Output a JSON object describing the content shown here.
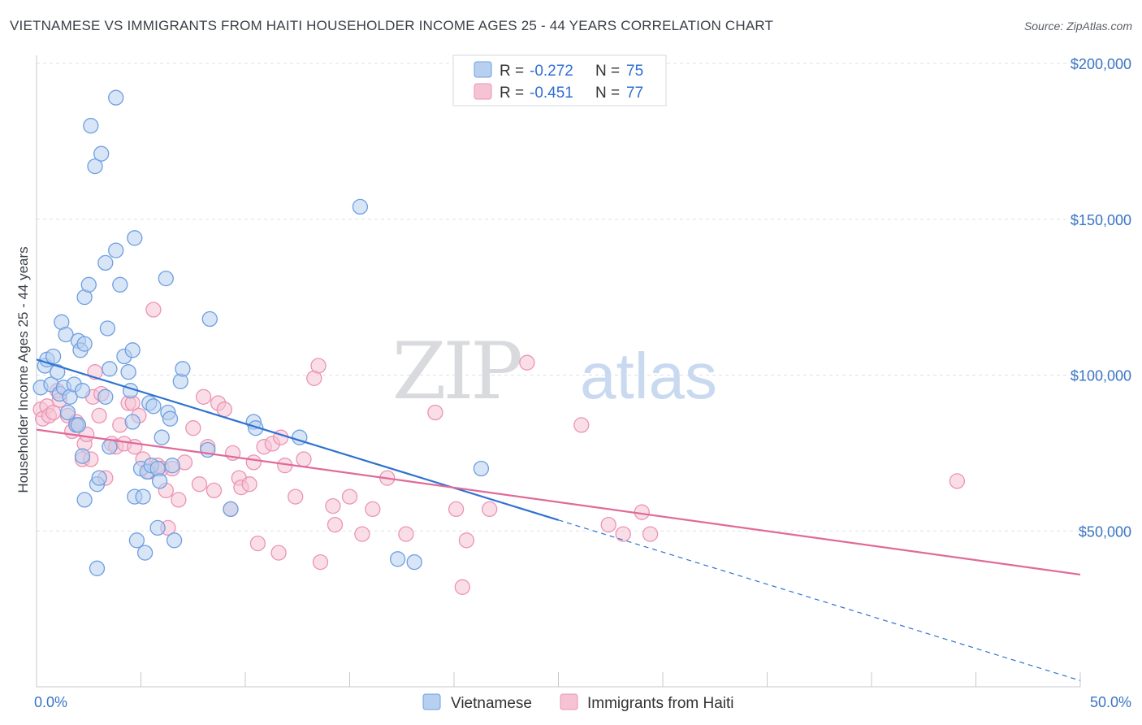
{
  "title": "VIETNAMESE VS IMMIGRANTS FROM HAITI HOUSEHOLDER INCOME AGES 25 - 44 YEARS CORRELATION CHART",
  "source": "Source: ZipAtlas.com",
  "watermark": {
    "zip": "ZIP",
    "atlas": "atlas"
  },
  "colors": {
    "blue": "#2f72d0",
    "blue_fill": "#b7d0f0",
    "blue_stroke": "#6e9fe0",
    "pink": "#e06a98",
    "pink_fill": "#f6c3d4",
    "pink_stroke": "#ec93b4",
    "tick_text": "#3a74c4",
    "grid": "#dde1e6"
  },
  "legend": {
    "rows": [
      {
        "r_label": "R =",
        "r_value": "-0.272",
        "n_label": "N =",
        "n_value": "75"
      },
      {
        "r_label": "R =",
        "r_value": "-0.451",
        "n_label": "N =",
        "n_value": "77"
      }
    ]
  },
  "chart_data": {
    "type": "scatter",
    "xlabel": "",
    "ylabel": "Householder Income Ages 25 - 44 years",
    "x_tick_labels": [
      "0.0%",
      "50.0%"
    ],
    "y_tick_labels": [
      "$50,000",
      "$100,000",
      "$150,000",
      "$200,000"
    ],
    "y_ticks": [
      50000,
      100000,
      150000,
      200000
    ],
    "xlim": [
      0,
      50
    ],
    "ylim": [
      0,
      205000
    ],
    "grid": true,
    "legend_position": "top-center",
    "series": [
      {
        "name": "Vietnamese",
        "r": -0.272,
        "n": 75,
        "trend": {
          "x0": 0,
          "y0": 105000,
          "x1": 25,
          "y1": 53500,
          "dash_to_x": 50,
          "dash_to_y": 2000
        },
        "points": [
          [
            0.2,
            96000
          ],
          [
            0.4,
            103000
          ],
          [
            0.5,
            105000
          ],
          [
            0.7,
            97000
          ],
          [
            0.8,
            106000
          ],
          [
            1.0,
            101000
          ],
          [
            1.1,
            94000
          ],
          [
            1.2,
            117000
          ],
          [
            1.3,
            96000
          ],
          [
            1.4,
            113000
          ],
          [
            1.5,
            88000
          ],
          [
            1.6,
            93000
          ],
          [
            1.8,
            97000
          ],
          [
            1.9,
            84000
          ],
          [
            2.0,
            111000
          ],
          [
            2.1,
            108000
          ],
          [
            2.2,
            95000
          ],
          [
            2.3,
            110000
          ],
          [
            2.0,
            84000
          ],
          [
            2.2,
            74000
          ],
          [
            2.3,
            60000
          ],
          [
            2.3,
            125000
          ],
          [
            2.5,
            129000
          ],
          [
            2.6,
            180000
          ],
          [
            2.8,
            167000
          ],
          [
            2.9,
            65000
          ],
          [
            3.0,
            67000
          ],
          [
            2.9,
            38000
          ],
          [
            3.1,
            171000
          ],
          [
            3.3,
            136000
          ],
          [
            3.3,
            93000
          ],
          [
            3.4,
            115000
          ],
          [
            3.5,
            102000
          ],
          [
            3.5,
            77000
          ],
          [
            3.8,
            140000
          ],
          [
            3.8,
            189000
          ],
          [
            4.0,
            129000
          ],
          [
            4.2,
            106000
          ],
          [
            4.4,
            101000
          ],
          [
            4.5,
            95000
          ],
          [
            4.6,
            85000
          ],
          [
            4.6,
            108000
          ],
          [
            4.7,
            144000
          ],
          [
            4.7,
            61000
          ],
          [
            4.8,
            47000
          ],
          [
            5.0,
            70000
          ],
          [
            5.1,
            61000
          ],
          [
            5.2,
            43000
          ],
          [
            5.3,
            69000
          ],
          [
            5.4,
            91000
          ],
          [
            5.5,
            71000
          ],
          [
            5.6,
            90000
          ],
          [
            5.8,
            70000
          ],
          [
            5.8,
            51000
          ],
          [
            5.9,
            66000
          ],
          [
            6.0,
            80000
          ],
          [
            6.2,
            131000
          ],
          [
            6.3,
            88000
          ],
          [
            6.4,
            86000
          ],
          [
            6.5,
            71000
          ],
          [
            6.6,
            47000
          ],
          [
            6.9,
            98000
          ],
          [
            7.0,
            102000
          ],
          [
            8.2,
            76000
          ],
          [
            8.3,
            118000
          ],
          [
            9.3,
            57000
          ],
          [
            10.4,
            85000
          ],
          [
            10.5,
            83000
          ],
          [
            12.6,
            80000
          ],
          [
            15.5,
            154000
          ],
          [
            17.3,
            41000
          ],
          [
            18.1,
            40000
          ],
          [
            21.3,
            70000
          ]
        ]
      },
      {
        "name": "Immigrants from Haiti",
        "r": -0.451,
        "n": 77,
        "trend": {
          "x0": 0,
          "y0": 82500,
          "x1": 50,
          "y1": 36000
        },
        "points": [
          [
            0.2,
            89000
          ],
          [
            0.3,
            86000
          ],
          [
            0.5,
            90000
          ],
          [
            0.6,
            87000
          ],
          [
            0.8,
            88000
          ],
          [
            1.0,
            95000
          ],
          [
            1.1,
            92000
          ],
          [
            1.5,
            87000
          ],
          [
            1.7,
            82000
          ],
          [
            1.9,
            85000
          ],
          [
            2.0,
            84000
          ],
          [
            2.2,
            73000
          ],
          [
            2.3,
            78000
          ],
          [
            2.4,
            81000
          ],
          [
            2.6,
            73000
          ],
          [
            2.7,
            93000
          ],
          [
            2.8,
            101000
          ],
          [
            3.0,
            87000
          ],
          [
            3.1,
            94000
          ],
          [
            3.3,
            67000
          ],
          [
            3.6,
            78000
          ],
          [
            3.8,
            77000
          ],
          [
            4.0,
            84000
          ],
          [
            4.2,
            78000
          ],
          [
            4.4,
            91000
          ],
          [
            4.6,
            91000
          ],
          [
            4.7,
            77000
          ],
          [
            4.9,
            87000
          ],
          [
            5.1,
            73000
          ],
          [
            5.4,
            69000
          ],
          [
            5.6,
            121000
          ],
          [
            5.8,
            71000
          ],
          [
            6.0,
            70000
          ],
          [
            6.2,
            63000
          ],
          [
            6.3,
            51000
          ],
          [
            6.5,
            70000
          ],
          [
            6.8,
            60000
          ],
          [
            7.1,
            72000
          ],
          [
            7.5,
            83000
          ],
          [
            7.8,
            65000
          ],
          [
            8.0,
            93000
          ],
          [
            8.2,
            77000
          ],
          [
            8.5,
            63000
          ],
          [
            8.7,
            91000
          ],
          [
            9.0,
            89000
          ],
          [
            9.3,
            57000
          ],
          [
            9.4,
            75000
          ],
          [
            9.7,
            67000
          ],
          [
            9.8,
            64000
          ],
          [
            10.2,
            65000
          ],
          [
            10.4,
            72000
          ],
          [
            10.6,
            46000
          ],
          [
            10.9,
            77000
          ],
          [
            11.3,
            78000
          ],
          [
            11.6,
            43000
          ],
          [
            11.7,
            80000
          ],
          [
            11.9,
            71000
          ],
          [
            12.4,
            61000
          ],
          [
            12.8,
            73000
          ],
          [
            13.3,
            99000
          ],
          [
            13.5,
            103000
          ],
          [
            13.6,
            40000
          ],
          [
            14.2,
            58000
          ],
          [
            14.3,
            52000
          ],
          [
            15.0,
            61000
          ],
          [
            15.6,
            49000
          ],
          [
            16.1,
            57000
          ],
          [
            16.8,
            67000
          ],
          [
            17.7,
            49000
          ],
          [
            19.1,
            88000
          ],
          [
            20.1,
            57000
          ],
          [
            20.4,
            32000
          ],
          [
            20.6,
            47000
          ],
          [
            21.7,
            57000
          ],
          [
            23.5,
            104000
          ],
          [
            26.1,
            84000
          ],
          [
            27.4,
            52000
          ],
          [
            28.1,
            49000
          ],
          [
            29.0,
            56000
          ],
          [
            29.4,
            49000
          ],
          [
            44.1,
            66000
          ]
        ]
      }
    ]
  }
}
